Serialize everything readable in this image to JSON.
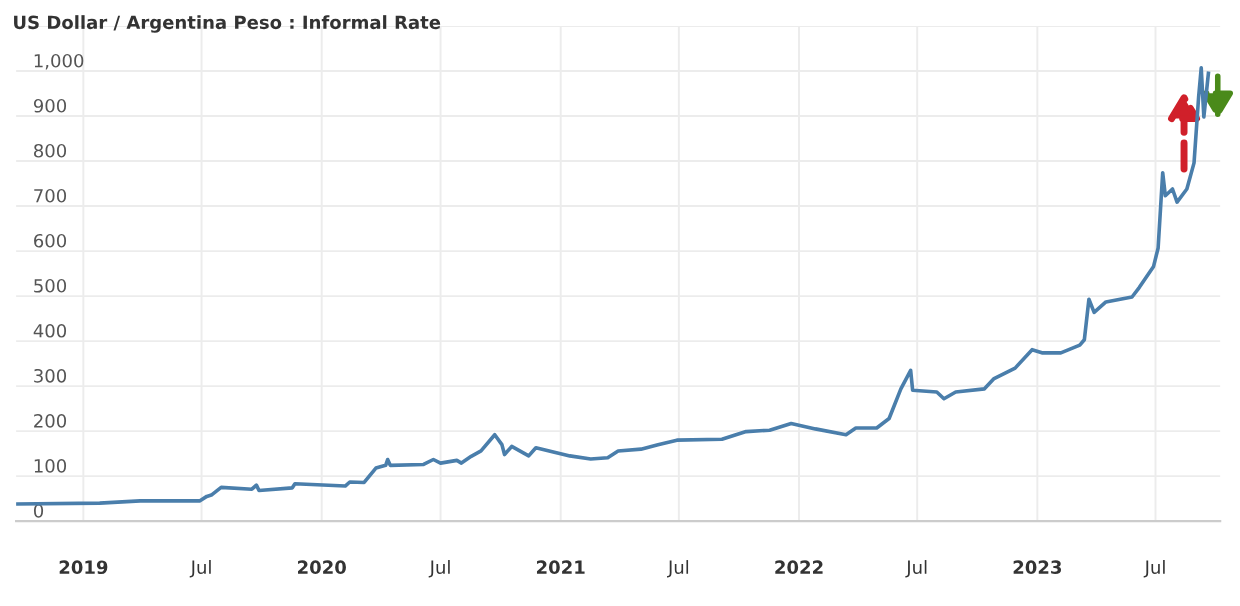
{
  "chart_data": {
    "type": "line",
    "title": "US Dollar / Argentina Peso : Informal Rate",
    "series": [
      {
        "color": "#4a7eab",
        "x": [
          "2018-09-20",
          "2019-01-26",
          "2019-03-29",
          "2019-06-28",
          "2019-07-09",
          "2019-07-16",
          "2019-07-31",
          "2019-09-16",
          "2019-09-23",
          "2019-09-27",
          "2019-11-17",
          "2019-11-21",
          "2020-02-06",
          "2020-02-13",
          "2020-03-06",
          "2020-03-24",
          "2020-04-08",
          "2020-04-11",
          "2020-04-15",
          "2020-06-05",
          "2020-06-20",
          "2020-07-01",
          "2020-07-26",
          "2020-08-02",
          "2020-08-17",
          "2020-09-01",
          "2020-09-22",
          "2020-10-03",
          "2020-10-07",
          "2020-10-18",
          "2020-11-13",
          "2020-11-24",
          "2021-01-15",
          "2021-02-16",
          "2021-03-14",
          "2021-03-30",
          "2021-05-04",
          "2021-05-30",
          "2021-06-28",
          "2021-09-05",
          "2021-10-12",
          "2021-11-17",
          "2021-12-20",
          "2022-01-26",
          "2022-03-14",
          "2022-03-29",
          "2022-04-30",
          "2022-05-19",
          "2022-06-06",
          "2022-06-21",
          "2022-06-24",
          "2022-07-31",
          "2022-08-11",
          "2022-08-29",
          "2022-10-12",
          "2022-10-26",
          "2022-11-28",
          "2022-12-24",
          "2023-01-08",
          "2023-02-06",
          "2023-03-07",
          "2023-03-14",
          "2023-03-21",
          "2023-03-29",
          "2023-04-16",
          "2023-05-26",
          "2023-06-06",
          "2023-06-28",
          "2023-07-05",
          "2023-07-12",
          "2023-07-16",
          "2023-07-27",
          "2023-08-03",
          "2023-08-18",
          "2023-08-29",
          "2023-09-05",
          "2023-09-09",
          "2023-09-13",
          "2023-09-20"
        ],
        "values": [
          38,
          40,
          45,
          45,
          55,
          58,
          75,
          71,
          80,
          68,
          74,
          83,
          78,
          87,
          86,
          118,
          124,
          137,
          124,
          126,
          137,
          129,
          135,
          129,
          144,
          156,
          192,
          170,
          148,
          166,
          145,
          163,
          145,
          138,
          141,
          156,
          160,
          170,
          180,
          182,
          199,
          202,
          217,
          205,
          192,
          207,
          207,
          228,
          294,
          335,
          291,
          287,
          272,
          287,
          294,
          316,
          340,
          381,
          374,
          374,
          391,
          403,
          493,
          464,
          487,
          498,
          519,
          566,
          607,
          774,
          723,
          738,
          709,
          738,
          796,
          942,
          1007,
          898,
          995
        ]
      }
    ],
    "xlim": [
      "2018-09-20",
      "2023-10-08"
    ],
    "xticks": [
      {
        "value": "2019-01-01",
        "label": "2019"
      },
      {
        "value": "2019-07-01",
        "label": "Jul"
      },
      {
        "value": "2020-01-01",
        "label": "2020"
      },
      {
        "value": "2020-07-01",
        "label": "Jul"
      },
      {
        "value": "2021-01-01",
        "label": "2021"
      },
      {
        "value": "2021-07-01",
        "label": "Jul"
      },
      {
        "value": "2022-01-01",
        "label": "2022"
      },
      {
        "value": "2022-07-01",
        "label": "Jul"
      },
      {
        "value": "2023-01-01",
        "label": "2023"
      },
      {
        "value": "2023-07-01",
        "label": "Jul"
      }
    ],
    "ylim": [
      0,
      1100
    ],
    "yticks": [
      0,
      100,
      200,
      300,
      400,
      500,
      600,
      700,
      800,
      900,
      {
        "value": 1000,
        "label": "1,000"
      },
      {
        "value": 1100,
        "label": null
      }
    ],
    "grid": true,
    "marker": "none",
    "line_style": "solid",
    "legend": false
  }
}
